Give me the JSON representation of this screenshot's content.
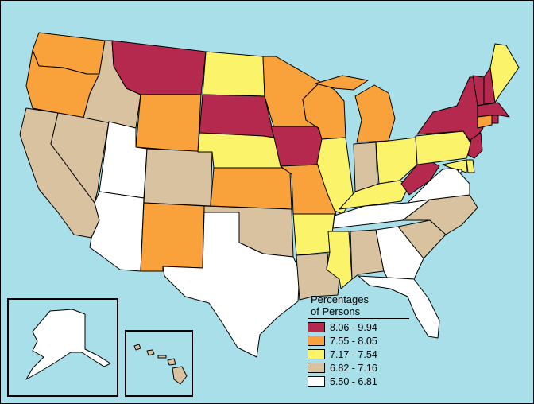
{
  "legend": {
    "title_line1": "Percentages",
    "title_line2": "of Persons",
    "classes": [
      {
        "label": "8.06 - 9.94",
        "color": "#b5294e"
      },
      {
        "label": "7.55 - 8.05",
        "color": "#f9a13a"
      },
      {
        "label": "7.17 - 7.54",
        "color": "#fbf46b"
      },
      {
        "label": "6.82 - 7.16",
        "color": "#d8c2a0"
      },
      {
        "label": "5.50 - 6.81",
        "color": "#ffffff"
      }
    ]
  },
  "colors": {
    "water": "#a9dfe9",
    "class_1": "#b5294e",
    "class_2": "#f9a13a",
    "class_3": "#fbf46b",
    "class_4": "#d8c2a0",
    "class_5": "#ffffff"
  },
  "states": [
    {
      "name": "WA",
      "class": 2
    },
    {
      "name": "OR",
      "class": 2
    },
    {
      "name": "CA",
      "class": 4
    },
    {
      "name": "NV",
      "class": 4
    },
    {
      "name": "ID",
      "class": 4
    },
    {
      "name": "MT",
      "class": 1
    },
    {
      "name": "WY",
      "class": 2
    },
    {
      "name": "UT",
      "class": 5
    },
    {
      "name": "AZ",
      "class": 5
    },
    {
      "name": "CO",
      "class": 4
    },
    {
      "name": "NM",
      "class": 2
    },
    {
      "name": "ND",
      "class": 3
    },
    {
      "name": "SD",
      "class": 1
    },
    {
      "name": "NE",
      "class": 3
    },
    {
      "name": "KS",
      "class": 2
    },
    {
      "name": "OK",
      "class": 4
    },
    {
      "name": "TX",
      "class": 5
    },
    {
      "name": "MN",
      "class": 2
    },
    {
      "name": "IA",
      "class": 1
    },
    {
      "name": "MO",
      "class": 2
    },
    {
      "name": "AR",
      "class": 3
    },
    {
      "name": "LA",
      "class": 4
    },
    {
      "name": "WI",
      "class": 2
    },
    {
      "name": "IL",
      "class": 3
    },
    {
      "name": "MI",
      "class": 2
    },
    {
      "name": "IN",
      "class": 4
    },
    {
      "name": "OH",
      "class": 3
    },
    {
      "name": "KY",
      "class": 3
    },
    {
      "name": "TN",
      "class": 5
    },
    {
      "name": "MS",
      "class": 3
    },
    {
      "name": "AL",
      "class": 4
    },
    {
      "name": "GA",
      "class": 5
    },
    {
      "name": "FL",
      "class": 5
    },
    {
      "name": "SC",
      "class": 4
    },
    {
      "name": "NC",
      "class": 4
    },
    {
      "name": "VA",
      "class": 5
    },
    {
      "name": "WV",
      "class": 1
    },
    {
      "name": "PA",
      "class": 3
    },
    {
      "name": "NY",
      "class": 1
    },
    {
      "name": "VT",
      "class": 1
    },
    {
      "name": "NH",
      "class": 1
    },
    {
      "name": "ME",
      "class": 3
    },
    {
      "name": "MA",
      "class": 1
    },
    {
      "name": "RI",
      "class": 1
    },
    {
      "name": "CT",
      "class": 2
    },
    {
      "name": "NJ",
      "class": 1
    },
    {
      "name": "DE",
      "class": 3
    },
    {
      "name": "MD",
      "class": 3
    },
    {
      "name": "DC",
      "class": 5
    },
    {
      "name": "AK",
      "class": 5
    },
    {
      "name": "HI",
      "class": 4
    }
  ]
}
